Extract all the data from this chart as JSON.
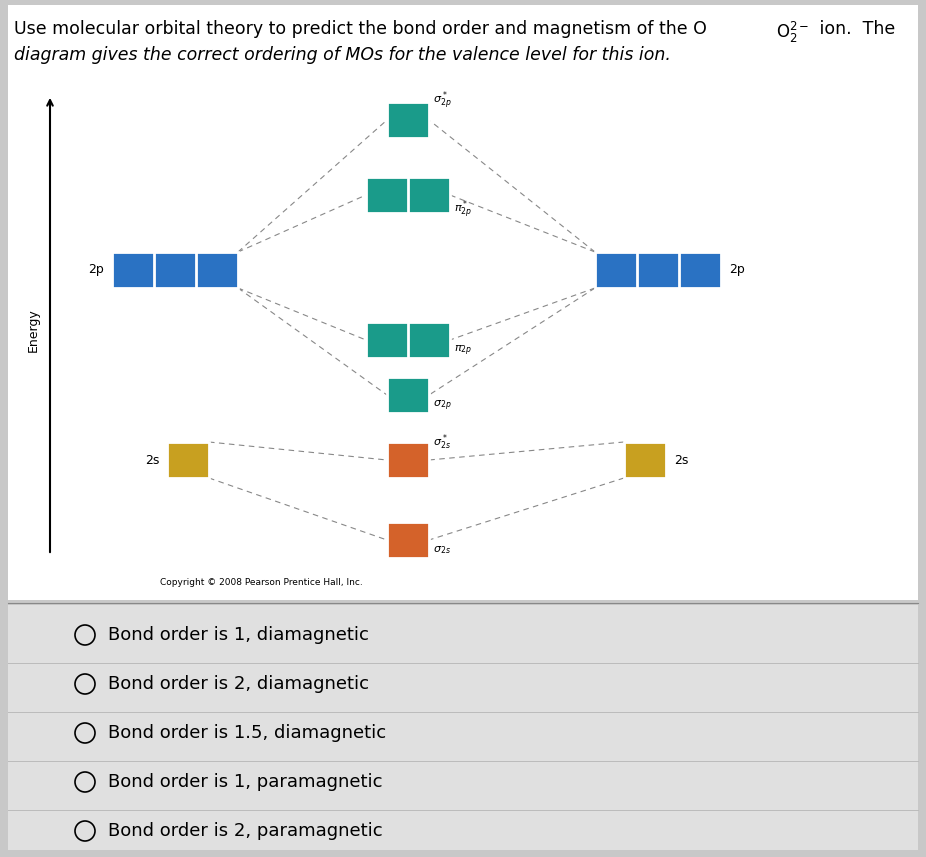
{
  "bg_color": "#c8c8c8",
  "white_bg": "#ffffff",
  "choices_bg": "#e8e8e8",
  "teal_color": "#1a9b8a",
  "blue_color": "#2a72c3",
  "orange_color": "#d4622a",
  "gold_color": "#c8a020",
  "choices": [
    "Bond order is 1, diamagnetic",
    "Bond order is 2, diamagnetic",
    "Bond order is 1.5, diamagnetic",
    "Bond order is 1, paramagnetic",
    "Bond order is 2, paramagnetic"
  ],
  "copyright": "Copyright © 2008 Pearson Prentice Hall, Inc."
}
